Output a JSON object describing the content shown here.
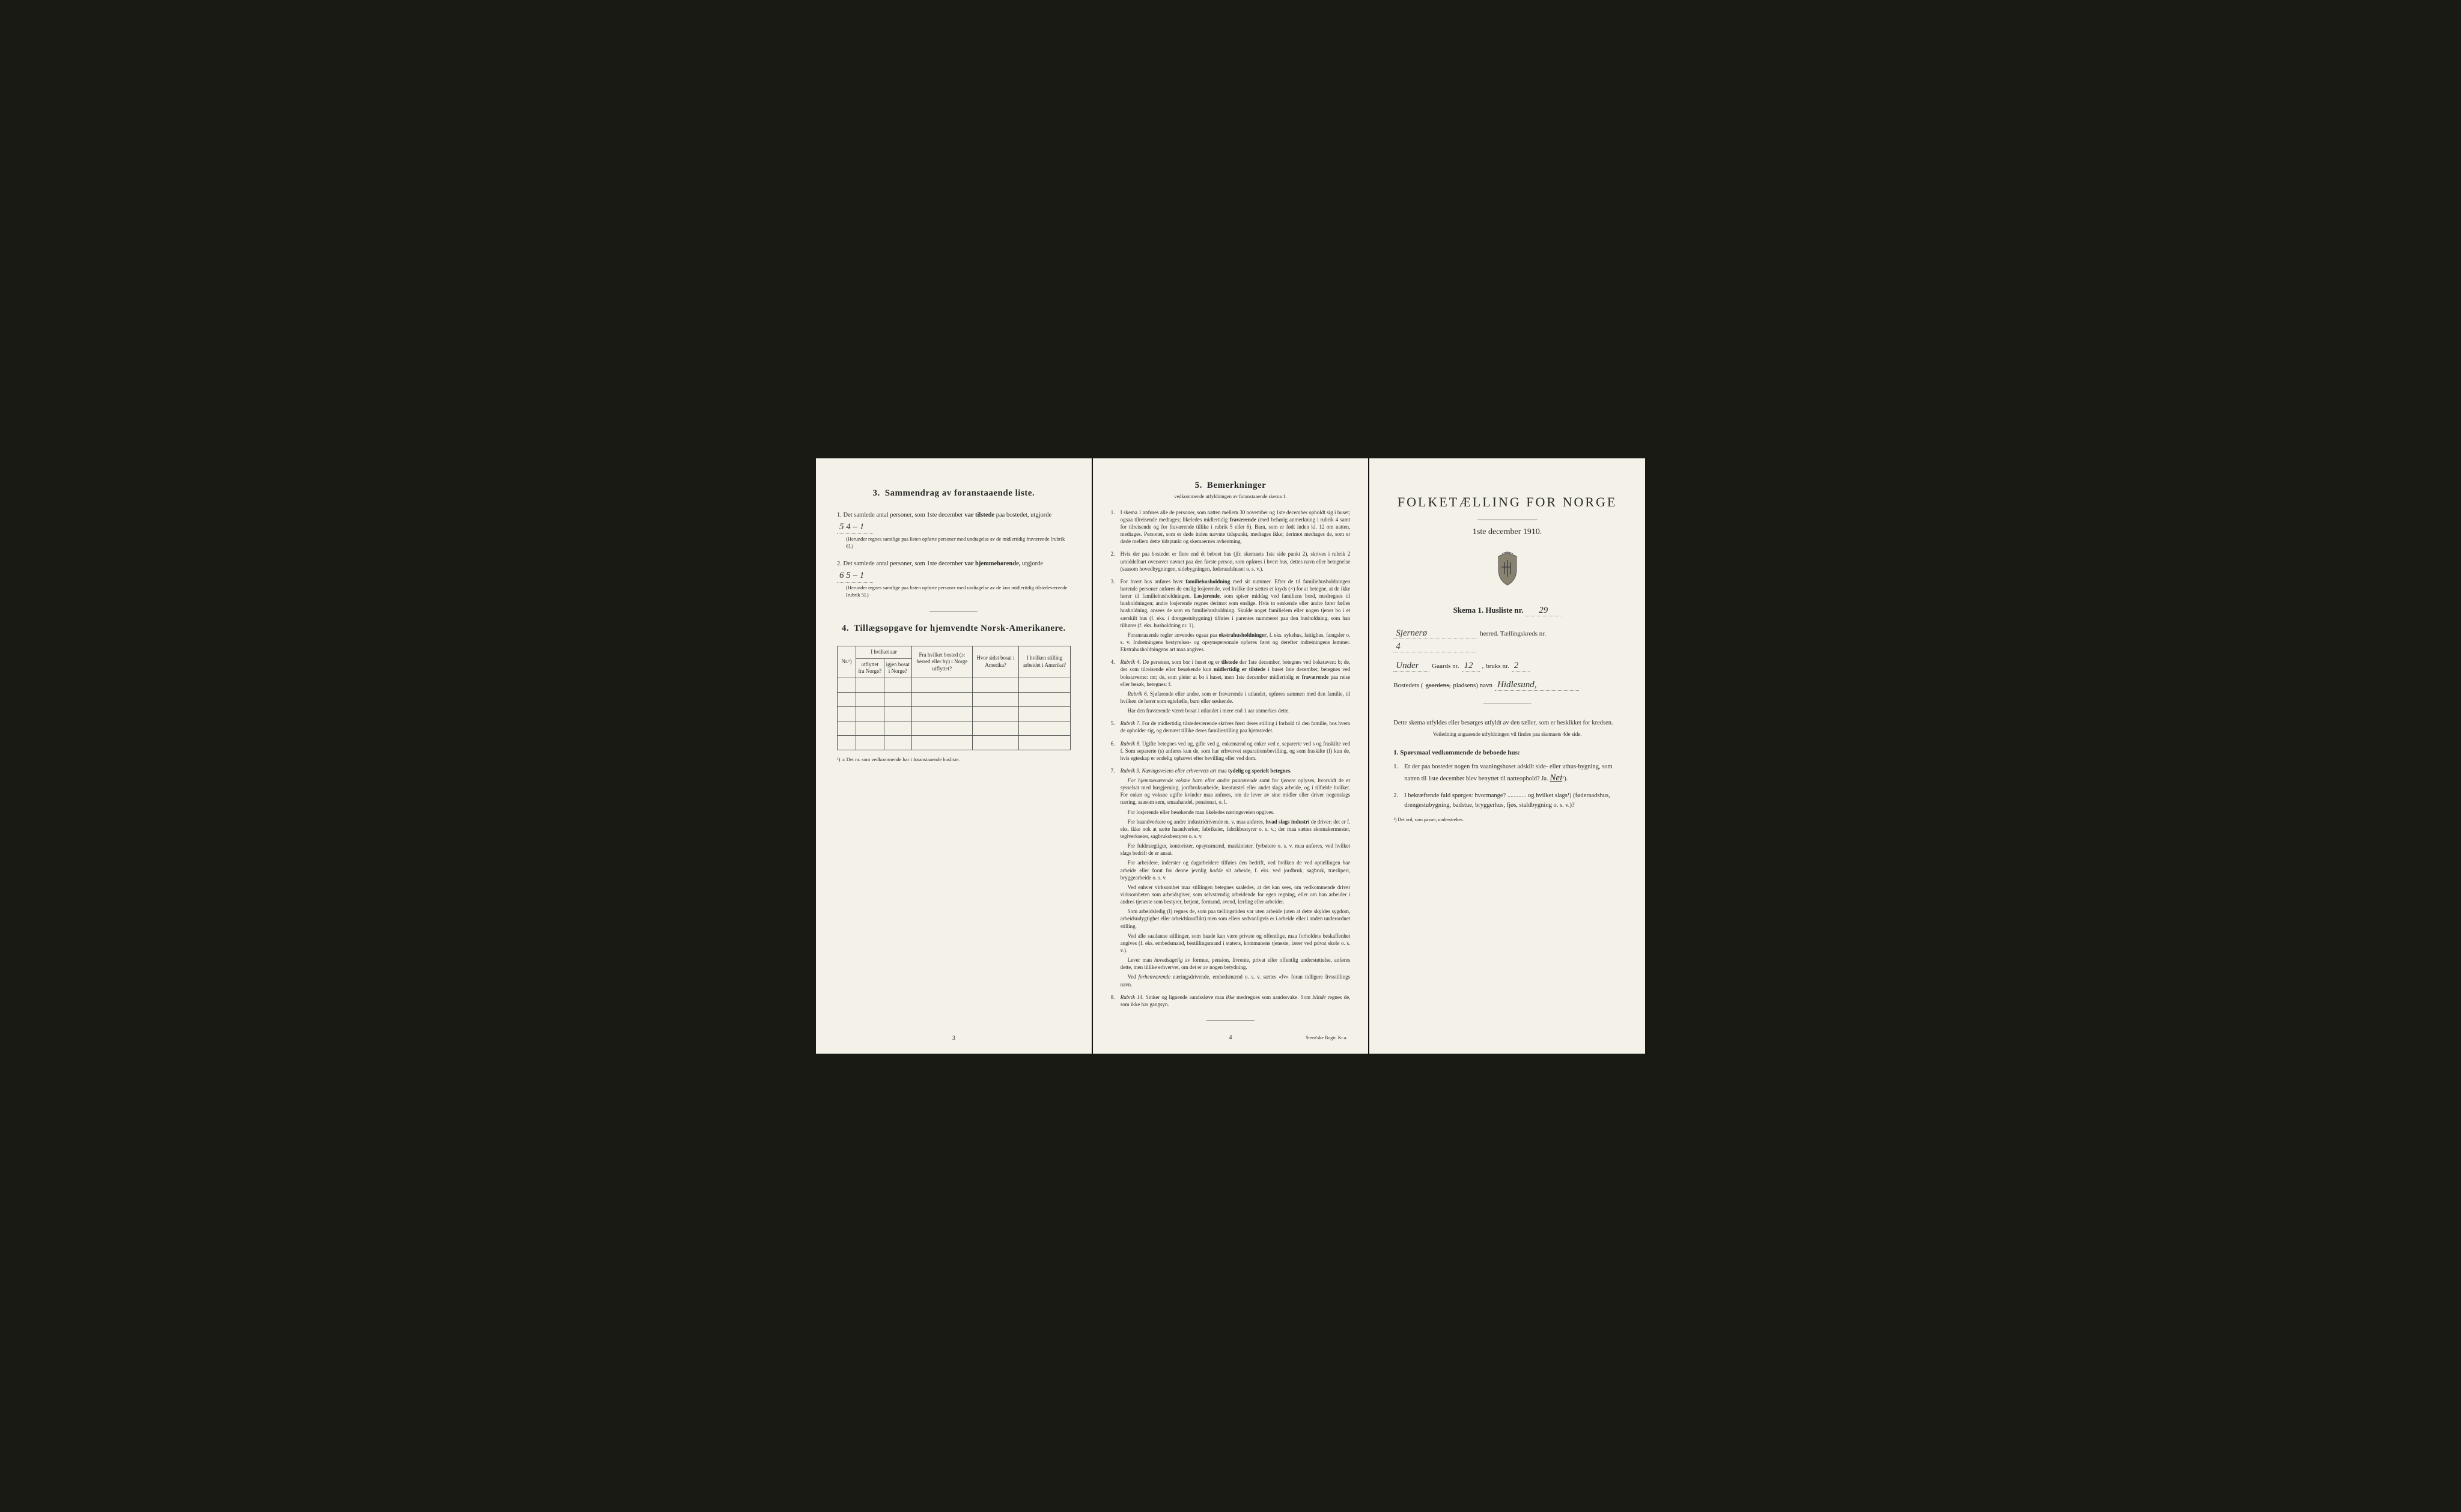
{
  "page1": {
    "section3": {
      "heading_num": "3.",
      "heading": "Sammendrag av foranstaaende liste.",
      "item1_prefix": "1.  Det samlede antal personer, som 1ste december",
      "item1_bold": "var tilstede",
      "item1_suffix": "paa bostedet, utgjorde",
      "item1_value": "5    4 – 1",
      "item1_note": "(Herunder regnes samtlige paa listen opførte personer med undtagelse av de midlertidig fraværende [rubrik 6].)",
      "item2_prefix": "2.  Det samlede antal personer, som 1ste december",
      "item2_bold": "var hjemmehørende,",
      "item2_suffix": "utgjorde",
      "item2_value": "6    5 – 1",
      "item2_note": "(Herunder regnes samtlige paa listen opførte personer med undtagelse av de kun midlertidig tilstedeværende [rubrik 5].)"
    },
    "section4": {
      "heading_num": "4.",
      "heading": "Tillægsopgave for hjemvendte Norsk-Amerikanere.",
      "cols": {
        "c1": "Nr.¹)",
        "c2a": "I hvilket aar",
        "c2b": "utflyttet fra Norge?",
        "c2c": "igjen bosat i Norge?",
        "c3": "Fra hvilket bosted (ɔ: herred eller by) i Norge utflyttet?",
        "c4": "Hvor sidst bosat i Amerika?",
        "c5": "I hvilken stilling arbeidet i Amerika?"
      },
      "footnote": "¹) ɔ: Det nr. som vedkommende har i foranstaaende husliste.",
      "row_count": 5
    },
    "pagenum": "3"
  },
  "page2": {
    "heading_num": "5.",
    "heading": "Bemerkninger",
    "subtitle": "vedkommende utfyldningen av foranstaaende skema 1.",
    "items": [
      {
        "n": "1.",
        "body": "I skema 1 anføres alle de personer, som natten mellem 30 november og 1ste december opholdt sig i huset; ogsaa tilreisende medtages; likeledes midlertidig <b>fraværende</b> (med behørig anmerkning i rubrik 4 samt for tilreisende og for fraværende tillike i rubrik 5 eller 6). Barn, som er født inden kl. 12 om natten, medtages. Personer, som er døde inden nævnte tidspunkt, medtages ikke; derimot medtages de, som er døde mellem dette tidspunkt og skemaernes avhentning."
      },
      {
        "n": "2.",
        "body": "Hvis der paa bostedet er flere end ét beboet hus (jfr. skemaets 1ste side punkt 2), skrives i rubrik 2 umiddelbart ovenover navnet paa den første person, som opføres i hvert hus, dettes navn eller betegnelse (saasom hovedbygningen, sidebygningen, føderaadshuset o. s. v.)."
      },
      {
        "n": "3.",
        "body": "For hvert hus anføres hver <b>familiehusholdning</b> med sit nummer. Efter de til familiehusholdningen hørende personer anføres de enslig losjerende, ved hvilke der sættes et kryds (×) for at betegne, at de ikke hører til familiehusholdningen. <b>Losjerende</b>, som spiser middag ved familiens bord, medregnes til husholdningen; andre losjerende regnes derimot som enslige. Hvis to søskende eller andre fører fælles husholdning, ansees de som en familiehusholdning. Skulde noget familielem eller nogen tjener bo i et særskilt hus (f. eks. i drengestubygning) tilføies i parentes nummeret paa den husholdning, som han tilhører (f. eks. husholdning nr. 1).",
        "paras": [
          "Foranstaaende regler anvendes ogsaa paa <b>ekstrahusholdninger</b>, f. eks. sykehus, fattighus, fængsler o. s. v. Indretningens bestyrelses- og opsynspersonale opføres først og derefter indretningens lemmer. Ekstrahusholdningens art maa angives."
        ]
      },
      {
        "n": "4.",
        "body": "<i>Rubrik 4.</i> De personer, som bor i huset og er <b>tilstede</b> der 1ste december, betegnes ved bokstaven: b; de, der som tilreisende eller besøkende kun <b>midlertidig er tilstede</b> i huset 1ste december, betegnes ved bokstaverne: mt; de, som pleier at bo i huset, men 1ste december midlertidig er <b>fraværende</b> paa reise eller besøk, betegnes: f.",
        "paras": [
          "<i>Rubrik 6.</i> Sjøfarende eller andre, som er fraværende i utlandet, opføres sammen med den familie, til hvilken de hører som egtefælle, barn eller søskende.",
          "Har den fraværende været bosat i utlandet i mere end 1 aar anmerkes dette."
        ]
      },
      {
        "n": "5.",
        "body": "<i>Rubrik 7.</i> For de midlertidig tilstedeværende skrives først deres stilling i forhold til den familie, hos hvem de opholder sig, og dernæst tillike deres familiestilling paa hjemstedet."
      },
      {
        "n": "6.",
        "body": "<i>Rubrik 8.</i> Ugifte betegnes ved ug, gifte ved g, enkemænd og enker ved e, separerte ved s og fraskilte ved f. Som separerte (s) anføres kun de, som har erhvervet separationsbevilling, og som fraskilte (f) kun de, hvis egteskap er endelig ophævet efter bevilling eller ved dom."
      },
      {
        "n": "7.",
        "body": "<i>Rubrik 9. Næringsveiens eller erhvervets art</i> maa <b>tydelig og specielt betegnes.</b>",
        "paras": [
          "<i>For hjemmeværende voksne barn eller andre paarørende</i> samt for <i>tjenere</i> oplyses, hvorvidt de er sysselsat med husgjerning, jordbruksarbeide, kreaturstel eller andet slags arbeide, og i tilfælde hvilket. For enker og voksne ugifte kvinder maa anføres, om de lever av sine midler eller driver nogenslags næring, saasom søm, smaahandel, pensionat, o. l.",
          "For losjerende eller besøkende maa likeledes næringsveien opgives.",
          "For haandverkere og andre industridrivende m. v. maa anføres, <b>hvad slags industri</b> de driver; det er f. eks. ikke nok at sætte haandverker, fabrikeier, fabrikbestyrer o. s. v.; der maa sættes skomakermester, teglverkseier, sagbruksbestyrer o. s. v.",
          "For fuldmægtiger, kontorister, opsynsmænd, maskinister, fyrbøtere o. s. v. maa anføres, ved hvilket slags bedrift de er ansat.",
          "For arbeidere, inderster og dagarbeidere tilføies den bedrift, ved hvilken de ved optællingen <i>har</i> arbeide eller forut for denne jevnlig <i>hadde</i> sit arbeide, f. eks. ved jordbruk, sagbruk, træsliperi, bryggearbeide o. s. v.",
          "Ved enhver virksomhet maa stillingen betegnes saaledes, at det kan sees, om vedkommende driver virksomheten som arbeidsgiver, som selvstændig arbeidende for egen regning, eller om han arbeider i andres tjeneste som bestyrer, betjent, formand, svend, lærling eller arbeider.",
          "Som arbeidsledig (l) regnes de, som paa tællingstiden var uten arbeide (uten at dette skyldes sygdom, arbeidsudygtighet eller arbeidskonflikt) men som ellers sedvanligvis er i arbeide eller i anden underordnet stilling.",
          "Ved alle saadanne stillinger, som baade kan være private og offentlige, maa forholdets beskaffenhet angives (f. eks. embedsmand, bestillingsmand i statens, kommunens tjeneste, lærer ved privat skole o. s. v.).",
          "Lever man <i>hovedsagelig</i> av formue, pension, livrente, privat eller offentlig understøttelse, anføres dette, men tillike erhvervet, om det er av nogen betydning.",
          "Ved <i>forhenværende</i> næringsdrivende, embedsmænd o. s. v. sættes «fv» foran tidligere livsstillings navn."
        ]
      },
      {
        "n": "8.",
        "body": "<i>Rubrik 14.</i> Sinker og lignende aandssløve maa <i>ikke</i> medregnes som aandssvake. Som <i>blinde</i> regnes de, som ikke har gangsyn."
      }
    ],
    "pagenum": "4",
    "printer": "Steen'ske Bogtr. Kr.a."
  },
  "page3": {
    "title": "FOLKETÆLLING FOR NORGE",
    "subtitle": "1ste december 1910.",
    "skema_label": "Skema 1.  Husliste nr.",
    "skema_value": "29",
    "line1_suffix": "herred.  Tællingskreds nr.",
    "line1_herred": "Sjernerø",
    "line1_kreds": "4",
    "line2_prefix": "",
    "line2_handwritten": "Under",
    "line2_gaards": "Gaards nr.",
    "line2_gaards_v": "12",
    "line2_bruks": "bruks nr.",
    "line2_bruks_v": "2",
    "line3_label": "Bostedets (",
    "line3_striked": "gaardens,",
    "line3_rest": " pladsens) navn",
    "line3_value": "Hidlesund,",
    "note1": "Dette skema utfyldes eller besørges utfyldt av den tæller, som er beskikket for kredsen.",
    "note2": "Veiledning angaaende utfyldningen vil findes paa skemaets 4de side.",
    "q_heading": "1. Spørsmaal vedkommende de beboede hus:",
    "q1_num": "1.",
    "q1": "Er der paa bostedet nogen fra vaaningshuset adskilt side- eller uthus-bygning, som natten til 1ste december blev benyttet til natteophold?   Ja.   ",
    "q1_answer": "Nei",
    "q1_suffix": "¹).",
    "q2_num": "2.",
    "q2": "I bekræftende fald spørges: hvormange? ............ og hvilket slags¹) (føderaadshus, drengestubygning, badstue, bryggerhus, fjøs, staldbygning o. s. v.)?",
    "footnote": "¹) Det ord, som passer, understrekes."
  },
  "colors": {
    "paper": "#f4f1e8",
    "ink": "#2a2a2a",
    "border": "#555555",
    "bg": "#1a1a14"
  }
}
